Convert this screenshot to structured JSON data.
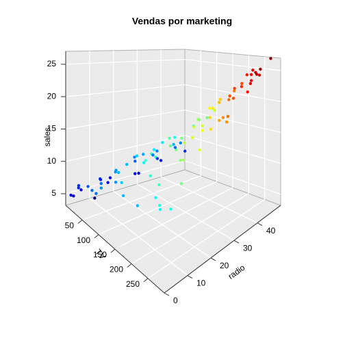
{
  "chart_data": {
    "type": "scatter3d",
    "title": "Vendas por marketing",
    "xlabel": "TV",
    "ylabel": "radio",
    "zlabel": "sales",
    "x": [
      230.1,
      44.5,
      17.2,
      151.5,
      180.8,
      8.7,
      57.5,
      120.2,
      8.6,
      199.8,
      66.1,
      214.7,
      23.8,
      97.5,
      204.1,
      195.4,
      67.8,
      281.4,
      69.2,
      147.3,
      218.4,
      237.4,
      13.2,
      228.3,
      62.3,
      262.9,
      142.9,
      240.1,
      248.8,
      70.6,
      292.9,
      112.9,
      97.2,
      265.6,
      290.7,
      266.9,
      74.7,
      43.1,
      228,
      202.5,
      177,
      293.6,
      25.1,
      175.1,
      89.7,
      239.9,
      66.9,
      216.4,
      182.6,
      262.7,
      198.9,
      7.3,
      136.2,
      210.8,
      53.5,
      261.3,
      102.7,
      131.1,
      31.5,
      139.3,
      26.8,
      129.4,
      16.9,
      27.5,
      5.4,
      76.4,
      68.4,
      110.7,
      109.8,
      28.6,
      250.9,
      163.3,
      289.7,
      296.4,
      280.2,
      137.9,
      25,
      90.4,
      13.1,
      225.8,
      19.4,
      7.8,
      80.2,
      220.3,
      265.2,
      273.7,
      4.1,
      93.9,
      11.7,
      276.9,
      287.6,
      18.7,
      17.2,
      166.8,
      283.6,
      156.6
    ],
    "y": [
      37.8,
      39.3,
      45.9,
      41.3,
      10.8,
      48.9,
      32.8,
      19.6,
      2.1,
      2.6,
      5.8,
      24,
      35.1,
      7.6,
      32.9,
      47.7,
      36.6,
      39.6,
      20.5,
      23.9,
      27.7,
      5.1,
      15.9,
      16.9,
      12.6,
      3.5,
      29.3,
      16.7,
      27.1,
      16,
      28.3,
      17.4,
      1.5,
      20,
      4.1,
      43.8,
      49.4,
      26.7,
      37.7,
      22.3,
      33.4,
      27.7,
      25.7,
      22.5,
      9.9,
      41.5,
      11.7,
      41.7,
      46.2,
      28.8,
      49.4,
      28.1,
      19.2,
      49.6,
      2,
      42.7,
      29.6,
      42.8,
      24.6,
      14.5,
      33,
      5.7,
      43.7,
      1.6,
      29.9,
      26.7,
      44.5,
      40.6,
      47.8,
      1.5,
      36.5,
      31.6,
      42.3,
      36.3,
      10.1,
      46.4,
      11,
      0.3,
      0.4,
      8.2,
      16,
      38.9,
      0,
      49,
      2.9,
      28.9,
      11.6,
      43.5,
      36.9,
      48.9,
      43,
      12.1,
      4.1,
      42,
      42,
      2.6
    ],
    "z": [
      22.1,
      10.4,
      9.3,
      18.5,
      12.9,
      7.2,
      11.8,
      13.2,
      4.8,
      10.6,
      8.6,
      17.4,
      9.2,
      9.7,
      19,
      22.4,
      12.5,
      24.4,
      11.3,
      14.6,
      18,
      12.5,
      5.6,
      15.5,
      9.7,
      12,
      15,
      15.9,
      18.9,
      10.5,
      21.4,
      11.9,
      9.6,
      17.4,
      12.8,
      25.4,
      14.7,
      10.1,
      21.5,
      16.6,
      17.1,
      20.7,
      8.5,
      14.9,
      10.6,
      23.2,
      9.7,
      22.6,
      21.2,
      20.2,
      23.7,
      5.5,
      13.2,
      23.8,
      8.1,
      24.2,
      14,
      18,
      9.5,
      13.4,
      8.8,
      11,
      8.7,
      6.9,
      5.3,
      11.8,
      13.6,
      16,
      16.7,
      7.3,
      22.2,
      16.9,
      25.4,
      23.8,
      14.8,
      19.2,
      7.2,
      8.7,
      5.3,
      13.4,
      6.6,
      6.6,
      8.8,
      24.7,
      12.7,
      20.8,
      3.2,
      15.3,
      7.3,
      27,
      26.2,
      6.7,
      5.9,
      19.6,
      25.5,
      10.5
    ],
    "xlim": [
      0,
      300
    ],
    "ylim": [
      0,
      50
    ],
    "zlim": [
      3.2,
      27
    ],
    "xticks": [
      50,
      100,
      150,
      200,
      250
    ],
    "yticks": [
      0,
      10,
      20,
      30,
      40
    ],
    "zticks": [
      5,
      10,
      15,
      20,
      25
    ],
    "grid": true,
    "colormap": [
      "#00007F",
      "#0000FF",
      "#007FFF",
      "#00FFFF",
      "#7FFF7F",
      "#FFFF00",
      "#FF7F00",
      "#FF0000",
      "#7F0000"
    ]
  }
}
